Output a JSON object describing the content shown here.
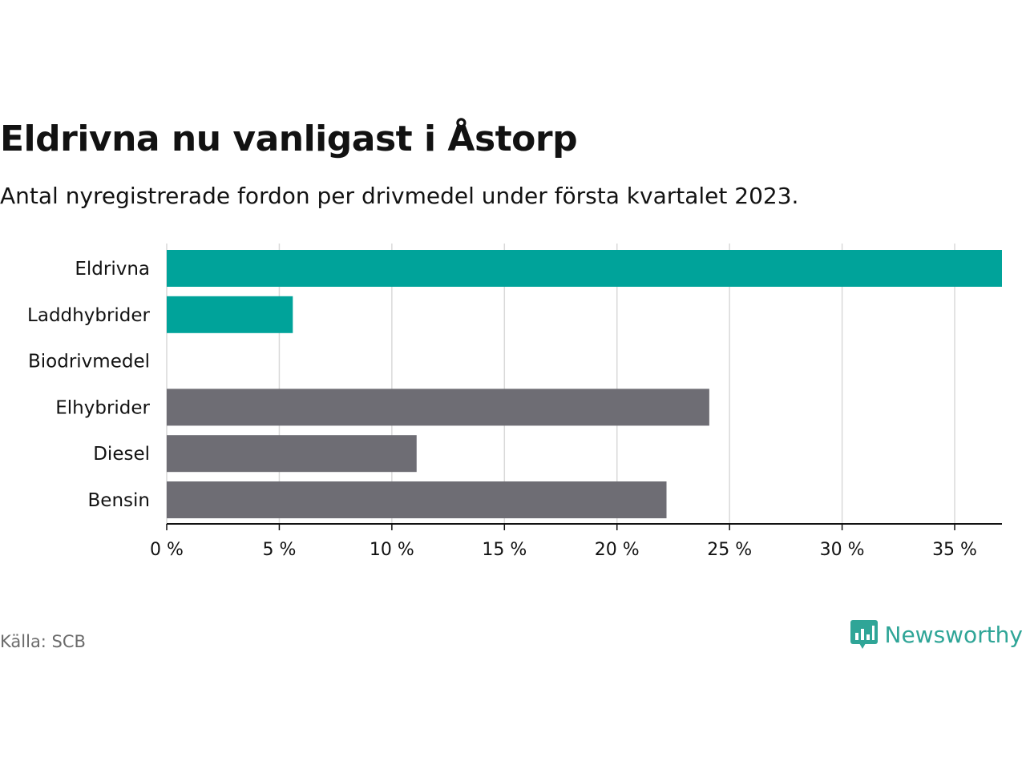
{
  "title": "Eldrivna nu vanligast i Åstorp",
  "subtitle": "Antal nyregistrerade fordon per drivmedel under första kvartalet 2023.",
  "source": "Källa: SCB",
  "brand": {
    "name": "Newsworthy",
    "icon": "newsworthy-logo-icon",
    "color": "#2fa597"
  },
  "colors": {
    "highlight": "#00a39a",
    "base": "#6e6d74",
    "grid": "#d9d9d9",
    "axis": "#121212"
  },
  "chart_data": {
    "type": "bar",
    "orientation": "horizontal",
    "categories": [
      "Eldrivna",
      "Laddhybrider",
      "Biodrivmedel",
      "Elhybrider",
      "Diesel",
      "Bensin"
    ],
    "values": [
      37.1,
      5.6,
      0,
      24.1,
      11.1,
      22.2
    ],
    "highlighted": [
      true,
      true,
      true,
      false,
      false,
      false
    ],
    "xlim": [
      0,
      37.1
    ],
    "xticks": [
      0,
      5,
      10,
      15,
      20,
      25,
      30,
      35
    ],
    "tick_labels": [
      "0 %",
      "5 %",
      "10 %",
      "15 %",
      "20 %",
      "25 %",
      "30 %",
      "35 %"
    ],
    "grid": true,
    "legend": "none"
  }
}
